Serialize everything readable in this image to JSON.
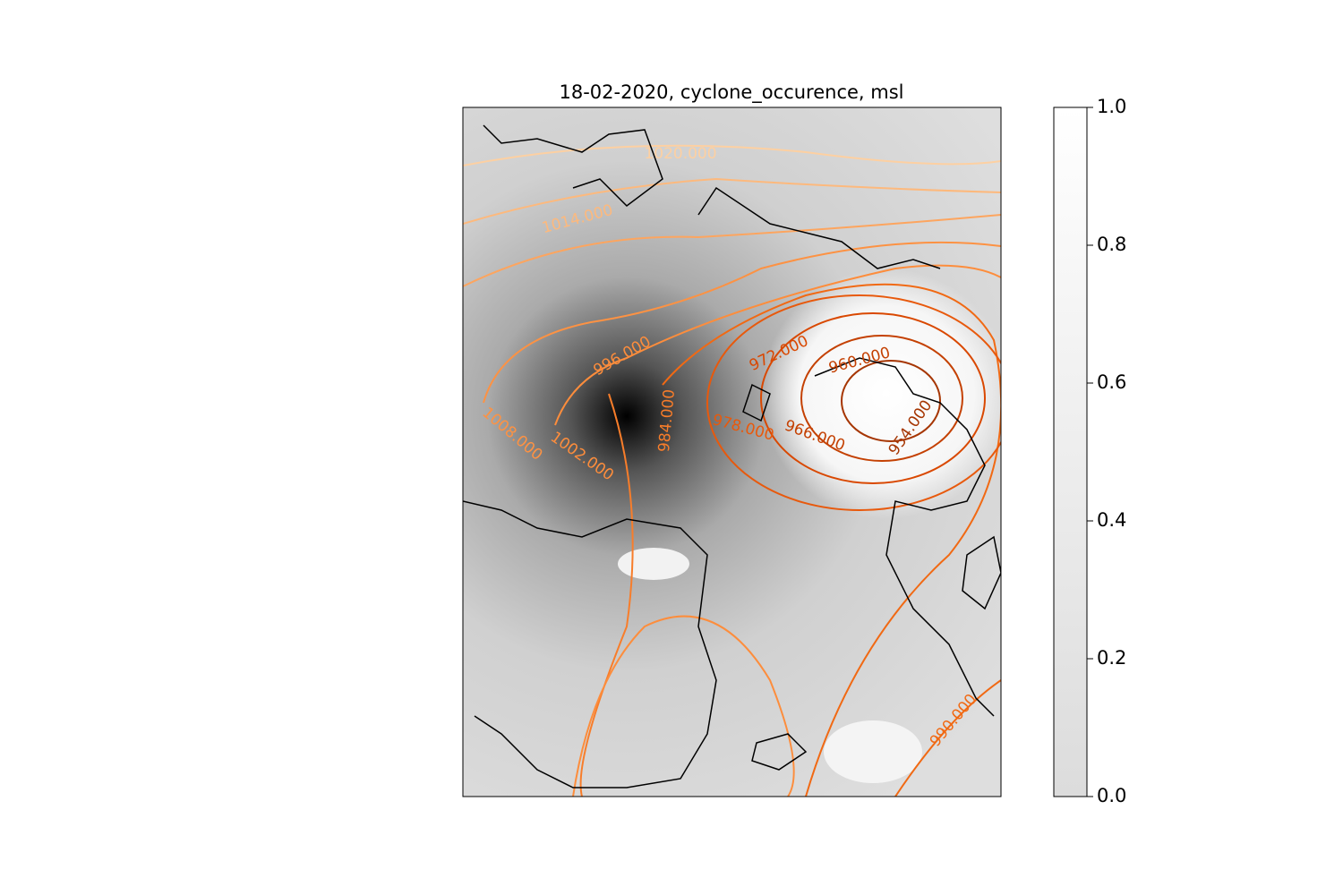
{
  "title": "18-02-2020, cyclone_occurence, msl",
  "contour_labels": [
    "1020.000",
    "1014.000",
    "1008.000",
    "1002.000",
    "996.000",
    "984.000",
    "978.000",
    "972.000",
    "966.000",
    "960.000",
    "954.000",
    "990.000"
  ],
  "colorbar": {
    "lim": [
      0,
      1
    ],
    "ticks": [
      {
        "value": 0,
        "label": "0.0"
      },
      {
        "value": 0.2,
        "label": "0.2"
      },
      {
        "value": 0.4,
        "label": "0.4"
      },
      {
        "value": 0.6,
        "label": "0.6"
      },
      {
        "value": 0.8,
        "label": "0.8"
      },
      {
        "value": 1,
        "label": "1.0"
      }
    ]
  }
}
